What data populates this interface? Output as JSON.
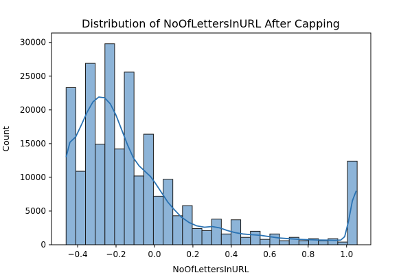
{
  "chart_data": {
    "type": "bar",
    "title": "Distribution of NoOfLettersInURL After Capping",
    "xlabel": "NoOfLettersInURL",
    "ylabel": "Count",
    "xlim": [
      -0.536,
      1.126
    ],
    "ylim": [
      0,
      31400
    ],
    "x_ticks": [
      -0.4,
      -0.2,
      0.0,
      0.2,
      0.4,
      0.6,
      0.8,
      1.0
    ],
    "x_tick_labels": [
      "−0.4",
      "−0.2",
      "0.0",
      "0.2",
      "0.4",
      "0.6",
      "0.8",
      "1.0"
    ],
    "y_ticks": [
      0,
      5000,
      10000,
      15000,
      20000,
      25000,
      30000
    ],
    "y_tick_labels": [
      "0",
      "5000",
      "10000",
      "15000",
      "20000",
      "25000",
      "30000"
    ],
    "bin_start": -0.46,
    "bin_width": 0.0505,
    "values": [
      23300,
      10900,
      26900,
      14900,
      29800,
      14200,
      25600,
      10200,
      16400,
      7200,
      9700,
      4300,
      5800,
      2400,
      2100,
      3800,
      1600,
      3700,
      1100,
      2000,
      800,
      1600,
      600,
      1100,
      600,
      900,
      600,
      900,
      400,
      12400
    ],
    "kde": {
      "x": [
        -0.46,
        -0.44,
        -0.41,
        -0.38,
        -0.35,
        -0.32,
        -0.29,
        -0.26,
        -0.23,
        -0.2,
        -0.17,
        -0.14,
        -0.11,
        -0.08,
        -0.05,
        -0.02,
        0.01,
        0.04,
        0.07,
        0.1,
        0.14,
        0.18,
        0.22,
        0.26,
        0.3,
        0.34,
        0.38,
        0.42,
        0.46,
        0.5,
        0.55,
        0.6,
        0.65,
        0.7,
        0.75,
        0.8,
        0.85,
        0.9,
        0.94,
        0.97,
        0.99,
        1.01,
        1.03,
        1.05
      ],
      "y": [
        13000,
        15200,
        16000,
        17800,
        19700,
        21200,
        21900,
        21800,
        20900,
        19200,
        17000,
        14800,
        12900,
        11700,
        10900,
        10100,
        8900,
        7600,
        6300,
        5300,
        4100,
        3300,
        2800,
        2600,
        2700,
        2500,
        2100,
        1800,
        1600,
        1500,
        1400,
        1200,
        1000,
        900,
        800,
        750,
        700,
        680,
        650,
        700,
        1200,
        3500,
        6500,
        8000
      ]
    },
    "colors": {
      "bar_fill": "#8db4d8",
      "bar_edge": "#1a1a1a",
      "kde_line": "#2a72b2"
    },
    "grid": false,
    "legend": "none"
  }
}
